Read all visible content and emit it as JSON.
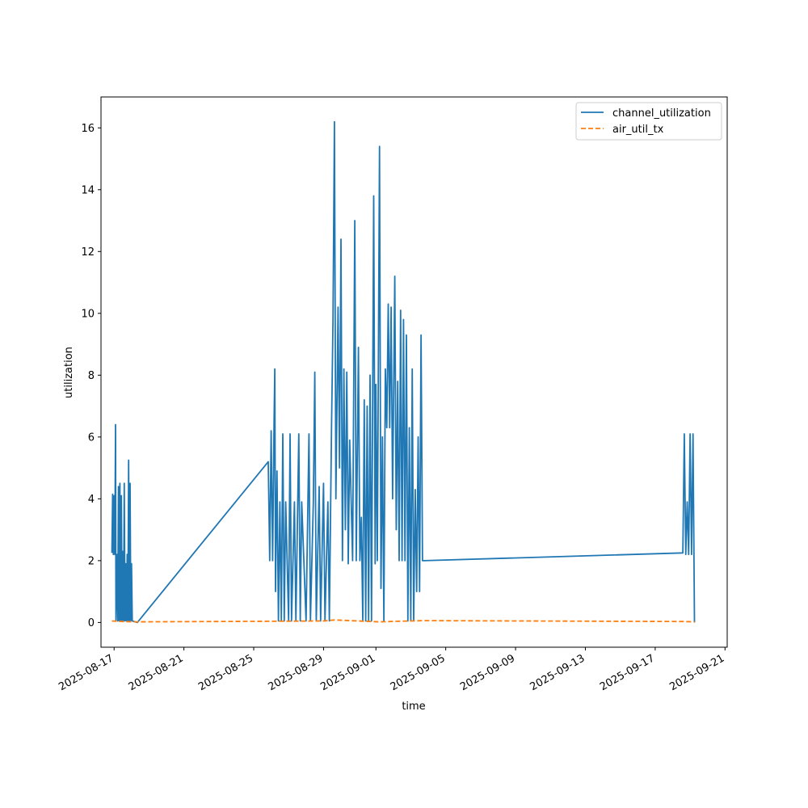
{
  "chart_data": {
    "type": "line",
    "title": "",
    "xlabel": "time",
    "ylabel": "utilization",
    "xlim": [
      "2025-08-16T06:00",
      "2025-09-21T03:00"
    ],
    "ylim": [
      -0.8,
      17.0
    ],
    "grid": false,
    "legend_position": "top-right",
    "x_ticks": [
      "2025-08-17",
      "2025-08-21",
      "2025-08-25",
      "2025-08-29",
      "2025-09-01",
      "2025-09-05",
      "2025-09-09",
      "2025-09-13",
      "2025-09-17",
      "2025-09-21"
    ],
    "y_ticks": [
      0,
      2,
      4,
      6,
      8,
      10,
      12,
      14,
      16
    ],
    "series": [
      {
        "name": "channel_utilization",
        "color": "#1f77b4",
        "style": "solid",
        "points": [
          [
            "2025-08-16T21:00",
            2.25
          ],
          [
            "2025-08-16T22:00",
            4.15
          ],
          [
            "2025-08-16T23:00",
            2.2
          ],
          [
            "2025-08-17T00:00",
            4.1
          ],
          [
            "2025-08-17T01:00",
            2.2
          ],
          [
            "2025-08-17T02:00",
            6.4
          ],
          [
            "2025-08-17T02:30",
            0.05
          ],
          [
            "2025-08-17T04:00",
            2.2
          ],
          [
            "2025-08-17T05:00",
            0.05
          ],
          [
            "2025-08-17T06:00",
            4.4
          ],
          [
            "2025-08-17T07:00",
            0.05
          ],
          [
            "2025-08-17T08:00",
            4.5
          ],
          [
            "2025-08-17T09:00",
            0.05
          ],
          [
            "2025-08-17T10:00",
            4.1
          ],
          [
            "2025-08-17T11:00",
            0.05
          ],
          [
            "2025-08-17T12:00",
            2.3
          ],
          [
            "2025-08-17T13:00",
            0.05
          ],
          [
            "2025-08-17T14:00",
            4.5
          ],
          [
            "2025-08-17T15:00",
            0.05
          ],
          [
            "2025-08-17T16:00",
            1.9
          ],
          [
            "2025-08-17T17:00",
            0.05
          ],
          [
            "2025-08-17T18:00",
            2.2
          ],
          [
            "2025-08-17T19:00",
            0.05
          ],
          [
            "2025-08-17T20:00",
            5.25
          ],
          [
            "2025-08-17T21:00",
            0.05
          ],
          [
            "2025-08-17T22:00",
            4.5
          ],
          [
            "2025-08-17T23:00",
            0.05
          ],
          [
            "2025-08-18T00:00",
            1.9
          ],
          [
            "2025-08-18T01:00",
            0.05
          ],
          [
            "2025-08-18T08:00",
            0.0
          ],
          [
            "2025-08-25T20:00",
            5.2
          ],
          [
            "2025-08-25T22:00",
            2.0
          ],
          [
            "2025-08-26T00:00",
            6.2
          ],
          [
            "2025-08-26T02:00",
            2.0
          ],
          [
            "2025-08-26T04:00",
            6.5
          ],
          [
            "2025-08-26T05:00",
            8.2
          ],
          [
            "2025-08-26T06:00",
            1.0
          ],
          [
            "2025-08-26T08:00",
            4.9
          ],
          [
            "2025-08-26T10:00",
            0.05
          ],
          [
            "2025-08-26T12:00",
            3.9
          ],
          [
            "2025-08-26T14:00",
            0.05
          ],
          [
            "2025-08-26T16:00",
            6.1
          ],
          [
            "2025-08-26T18:00",
            0.05
          ],
          [
            "2025-08-26T20:00",
            3.9
          ],
          [
            "2025-08-27T00:00",
            0.05
          ],
          [
            "2025-08-27T02:00",
            6.1
          ],
          [
            "2025-08-27T04:00",
            0.05
          ],
          [
            "2025-08-27T08:00",
            3.9
          ],
          [
            "2025-08-27T10:00",
            0.05
          ],
          [
            "2025-08-27T14:00",
            6.1
          ],
          [
            "2025-08-27T16:00",
            0.05
          ],
          [
            "2025-08-27T18:00",
            3.9
          ],
          [
            "2025-08-28T00:00",
            0.05
          ],
          [
            "2025-08-28T04:00",
            6.1
          ],
          [
            "2025-08-28T06:00",
            0.05
          ],
          [
            "2025-08-28T10:00",
            3.9
          ],
          [
            "2025-08-28T12:00",
            8.1
          ],
          [
            "2025-08-28T14:00",
            0.05
          ],
          [
            "2025-08-28T18:00",
            4.4
          ],
          [
            "2025-08-28T20:00",
            0.05
          ],
          [
            "2025-08-29T00:00",
            4.5
          ],
          [
            "2025-08-29T02:00",
            0.05
          ],
          [
            "2025-08-29T06:00",
            3.9
          ],
          [
            "2025-08-29T08:00",
            0.05
          ],
          [
            "2025-08-29T11:00",
            6.3
          ],
          [
            "2025-08-29T13:00",
            9.7
          ],
          [
            "2025-08-29T15:00",
            16.2
          ],
          [
            "2025-08-29T17:00",
            4.0
          ],
          [
            "2025-08-29T20:00",
            10.2
          ],
          [
            "2025-08-29T22:00",
            5.0
          ],
          [
            "2025-08-30T00:00",
            12.4
          ],
          [
            "2025-08-30T02:00",
            2.0
          ],
          [
            "2025-08-30T04:00",
            8.2
          ],
          [
            "2025-08-30T06:00",
            3.0
          ],
          [
            "2025-08-30T08:00",
            8.1
          ],
          [
            "2025-08-30T10:00",
            1.9
          ],
          [
            "2025-08-30T12:00",
            5.9
          ],
          [
            "2025-08-30T16:00",
            2.0
          ],
          [
            "2025-08-30T19:00",
            13.0
          ],
          [
            "2025-08-30T21:00",
            2.0
          ],
          [
            "2025-08-31T00:00",
            8.9
          ],
          [
            "2025-08-31T02:00",
            2.0
          ],
          [
            "2025-08-31T04:00",
            3.4
          ],
          [
            "2025-08-31T06:00",
            0.05
          ],
          [
            "2025-08-31T08:00",
            7.2
          ],
          [
            "2025-08-31T10:00",
            0.05
          ],
          [
            "2025-08-31T12:00",
            7.0
          ],
          [
            "2025-08-31T14:00",
            0.05
          ],
          [
            "2025-08-31T16:00",
            8.0
          ],
          [
            "2025-08-31T18:00",
            0.05
          ],
          [
            "2025-08-31T21:00",
            13.8
          ],
          [
            "2025-08-31T23:00",
            1.9
          ],
          [
            "2025-09-01T00:00",
            7.7
          ],
          [
            "2025-09-01T02:00",
            2.0
          ],
          [
            "2025-09-01T05:00",
            15.4
          ],
          [
            "2025-09-01T07:00",
            1.1
          ],
          [
            "2025-09-01T09:00",
            6.0
          ],
          [
            "2025-09-01T11:00",
            0.05
          ],
          [
            "2025-09-01T13:00",
            8.2
          ],
          [
            "2025-09-01T15:00",
            6.3
          ],
          [
            "2025-09-01T17:00",
            10.3
          ],
          [
            "2025-09-01T19:00",
            6.3
          ],
          [
            "2025-09-01T21:00",
            10.2
          ],
          [
            "2025-09-01T23:00",
            4.0
          ],
          [
            "2025-09-02T02:00",
            11.2
          ],
          [
            "2025-09-02T04:00",
            3.0
          ],
          [
            "2025-09-02T06:00",
            7.8
          ],
          [
            "2025-09-02T08:00",
            2.0
          ],
          [
            "2025-09-02T10:00",
            10.1
          ],
          [
            "2025-09-02T12:00",
            2.0
          ],
          [
            "2025-09-02T14:00",
            9.8
          ],
          [
            "2025-09-02T16:00",
            2.0
          ],
          [
            "2025-09-02T18:00",
            9.3
          ],
          [
            "2025-09-02T20:00",
            0.05
          ],
          [
            "2025-09-02T22:00",
            6.3
          ],
          [
            "2025-09-03T00:00",
            0.05
          ],
          [
            "2025-09-03T02:00",
            8.2
          ],
          [
            "2025-09-03T04:00",
            0.05
          ],
          [
            "2025-09-03T06:00",
            4.3
          ],
          [
            "2025-09-03T08:00",
            1.0
          ],
          [
            "2025-09-03T10:00",
            6.0
          ],
          [
            "2025-09-03T12:00",
            1.0
          ],
          [
            "2025-09-03T14:00",
            9.3
          ],
          [
            "2025-09-03T16:00",
            2.0
          ],
          [
            "2025-09-03T18:00",
            2.0
          ],
          [
            "2025-09-18T14:00",
            2.25
          ],
          [
            "2025-09-18T16:00",
            6.1
          ],
          [
            "2025-09-18T18:00",
            2.2
          ],
          [
            "2025-09-18T20:00",
            3.9
          ],
          [
            "2025-09-18T22:00",
            2.2
          ],
          [
            "2025-09-19T00:00",
            6.1
          ],
          [
            "2025-09-19T02:00",
            2.2
          ],
          [
            "2025-09-19T04:00",
            6.1
          ],
          [
            "2025-09-19T06:00",
            0.0
          ]
        ]
      },
      {
        "name": "air_util_tx",
        "color": "#ff7f0e",
        "style": "dashed",
        "points": [
          [
            "2025-08-16T21:00",
            0.05
          ],
          [
            "2025-08-17T12:00",
            0.03
          ],
          [
            "2025-08-18T08:00",
            0.02
          ],
          [
            "2025-08-25T20:00",
            0.04
          ],
          [
            "2025-08-29T00:00",
            0.05
          ],
          [
            "2025-08-29T15:00",
            0.08
          ],
          [
            "2025-09-01T05:00",
            0.02
          ],
          [
            "2025-09-02T06:00",
            0.04
          ],
          [
            "2025-09-03T18:00",
            0.06
          ],
          [
            "2025-09-18T14:00",
            0.03
          ],
          [
            "2025-09-19T06:00",
            0.02
          ]
        ]
      }
    ]
  }
}
